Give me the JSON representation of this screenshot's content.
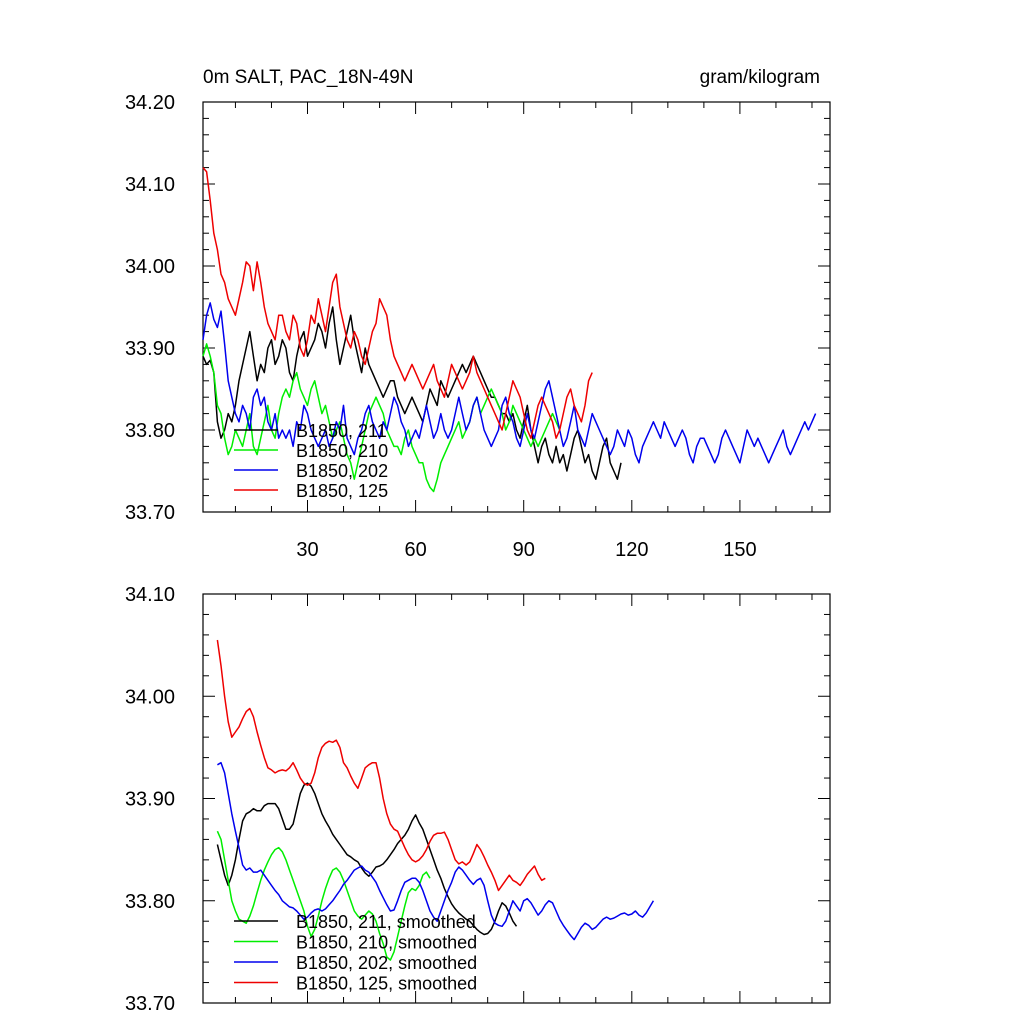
{
  "chart_data": [
    {
      "type": "line",
      "title": "0m SALT, PAC_18N-49N",
      "units": "gram/kilogram",
      "xlabel": "",
      "ylabel": "",
      "xlim": [
        1,
        175
      ],
      "ylim": [
        33.7,
        34.2
      ],
      "xticks": [
        30,
        60,
        90,
        120,
        150
      ],
      "yticks": [
        33.7,
        33.8,
        33.9,
        34.0,
        34.1,
        34.2
      ],
      "ytick_labels": [
        "33.70",
        "33.80",
        "33.90",
        "34.00",
        "34.10",
        "34.20"
      ],
      "legend_position": "bottom-left",
      "grid": false,
      "series": [
        {
          "name": "B1850, 211",
          "color": "#000000",
          "x_start": 1,
          "values": [
            33.89,
            33.88,
            33.885,
            33.87,
            33.81,
            33.79,
            33.8,
            33.82,
            33.81,
            33.83,
            33.86,
            33.88,
            33.9,
            33.92,
            33.89,
            33.86,
            33.88,
            33.87,
            33.9,
            33.91,
            33.88,
            33.89,
            33.91,
            33.9,
            33.87,
            33.86,
            33.89,
            33.91,
            33.92,
            33.89,
            33.9,
            33.91,
            33.93,
            33.92,
            33.9,
            33.93,
            33.95,
            33.91,
            33.88,
            33.9,
            33.92,
            33.94,
            33.91,
            33.89,
            33.87,
            33.9,
            33.88,
            33.87,
            33.86,
            33.85,
            33.84,
            33.85,
            33.86,
            33.86,
            33.84,
            33.83,
            33.82,
            33.83,
            33.84,
            33.83,
            33.82,
            33.81,
            33.83,
            33.85,
            33.84,
            33.83,
            33.86,
            33.85,
            33.84,
            33.85,
            33.86,
            33.87,
            33.88,
            33.87,
            33.88,
            33.89,
            33.88,
            33.87,
            33.86,
            33.85,
            33.84,
            33.84,
            33.83,
            33.82,
            33.82,
            33.81,
            33.82,
            33.8,
            33.79,
            33.81,
            33.83,
            33.8,
            33.78,
            33.76,
            33.78,
            33.79,
            33.77,
            33.76,
            33.78,
            33.76,
            33.77,
            33.75,
            33.77,
            33.79,
            33.8,
            33.78,
            33.76,
            33.77,
            33.75,
            33.74,
            33.76,
            33.78,
            33.79,
            33.76,
            33.75,
            33.74,
            33.76
          ]
        },
        {
          "name": "B1850, 210",
          "color": "#00ee00",
          "x_start": 1,
          "values": [
            33.89,
            33.905,
            33.89,
            33.87,
            33.83,
            33.82,
            33.79,
            33.77,
            33.78,
            33.8,
            33.79,
            33.78,
            33.8,
            33.82,
            33.78,
            33.77,
            33.79,
            33.81,
            33.83,
            33.8,
            33.79,
            33.82,
            33.84,
            33.85,
            33.84,
            33.86,
            33.87,
            33.85,
            33.84,
            33.83,
            33.85,
            33.86,
            33.84,
            33.82,
            33.83,
            33.81,
            33.79,
            33.8,
            33.81,
            33.79,
            33.77,
            33.76,
            33.74,
            33.76,
            33.78,
            33.8,
            33.82,
            33.83,
            33.84,
            33.83,
            33.82,
            33.8,
            33.79,
            33.78,
            33.78,
            33.77,
            33.79,
            33.8,
            33.78,
            33.77,
            33.76,
            33.76,
            33.74,
            33.73,
            33.725,
            33.74,
            33.76,
            33.77,
            33.78,
            33.79,
            33.8,
            33.81,
            33.79,
            33.8,
            33.81,
            33.83,
            33.84,
            33.82,
            33.83,
            33.84,
            33.85,
            33.84,
            33.83,
            33.82,
            33.8,
            33.81,
            33.83,
            33.82,
            33.81,
            33.8,
            33.79,
            33.78,
            33.79,
            33.78,
            33.79,
            33.8,
            33.81,
            33.82,
            33.81,
            33.8
          ]
        },
        {
          "name": "B1850, 202",
          "color": "#0000ee",
          "x_start": 1,
          "values": [
            33.91,
            33.94,
            33.955,
            33.935,
            33.925,
            33.945,
            33.905,
            33.86,
            33.84,
            33.82,
            33.81,
            33.83,
            33.82,
            33.8,
            33.84,
            33.85,
            33.83,
            33.84,
            33.81,
            33.8,
            33.82,
            33.79,
            33.8,
            33.79,
            33.8,
            33.78,
            33.81,
            33.8,
            33.83,
            33.82,
            33.8,
            33.79,
            33.78,
            33.79,
            33.8,
            33.78,
            33.79,
            33.81,
            33.8,
            33.83,
            33.79,
            33.78,
            33.77,
            33.79,
            33.8,
            33.82,
            33.83,
            33.81,
            33.8,
            33.79,
            33.81,
            33.8,
            33.82,
            33.84,
            33.83,
            33.81,
            33.8,
            33.78,
            33.79,
            33.8,
            33.79,
            33.81,
            33.83,
            33.81,
            33.79,
            33.8,
            33.82,
            33.8,
            33.79,
            33.8,
            33.82,
            33.84,
            33.82,
            33.8,
            33.81,
            33.83,
            33.84,
            33.82,
            33.8,
            33.79,
            33.78,
            33.79,
            33.8,
            33.83,
            33.84,
            33.82,
            33.81,
            33.79,
            33.78,
            33.8,
            33.82,
            33.8,
            33.79,
            33.81,
            33.83,
            33.85,
            33.86,
            33.84,
            33.82,
            33.8,
            33.78,
            33.79,
            33.81,
            33.83,
            33.8,
            33.79,
            33.78,
            33.8,
            33.82,
            33.81,
            33.8,
            33.79,
            33.78,
            33.77,
            33.78,
            33.8,
            33.79,
            33.78,
            33.8,
            33.79,
            33.77,
            33.76,
            33.78,
            33.79,
            33.8,
            33.81,
            33.8,
            33.79,
            33.81,
            33.8,
            33.79,
            33.78,
            33.79,
            33.8,
            33.79,
            33.77,
            33.76,
            33.78,
            33.79,
            33.79,
            33.78,
            33.77,
            33.76,
            33.77,
            33.79,
            33.8,
            33.79,
            33.78,
            33.77,
            33.76,
            33.78,
            33.8,
            33.79,
            33.78,
            33.79,
            33.78,
            33.77,
            33.76,
            33.77,
            33.78,
            33.79,
            33.8,
            33.78,
            33.77,
            33.78,
            33.79,
            33.8,
            33.81,
            33.8,
            33.81,
            33.82
          ]
        },
        {
          "name": "B1850, 125",
          "color": "#ee0000",
          "x_start": 1,
          "values": [
            34.12,
            34.115,
            34.08,
            34.04,
            34.02,
            33.99,
            33.98,
            33.96,
            33.95,
            33.94,
            33.96,
            33.98,
            34.005,
            34.0,
            33.97,
            34.005,
            33.98,
            33.95,
            33.93,
            33.92,
            33.91,
            33.94,
            33.94,
            33.92,
            33.91,
            33.94,
            33.93,
            33.9,
            33.89,
            33.91,
            33.94,
            33.93,
            33.96,
            33.94,
            33.92,
            33.95,
            33.98,
            33.99,
            33.95,
            33.93,
            33.91,
            33.9,
            33.92,
            33.91,
            33.89,
            33.88,
            33.9,
            33.92,
            33.93,
            33.96,
            33.95,
            33.94,
            33.91,
            33.89,
            33.88,
            33.87,
            33.86,
            33.87,
            33.88,
            33.87,
            33.86,
            33.85,
            33.86,
            33.87,
            33.88,
            33.86,
            33.85,
            33.84,
            33.86,
            33.88,
            33.87,
            33.86,
            33.85,
            33.86,
            33.87,
            33.89,
            33.87,
            33.86,
            33.85,
            33.84,
            33.83,
            33.82,
            33.81,
            33.8,
            33.82,
            33.84,
            33.86,
            33.85,
            33.84,
            33.82,
            33.8,
            33.79,
            33.81,
            33.83,
            33.84,
            33.83,
            33.82,
            33.81,
            33.79,
            33.8,
            33.82,
            33.84,
            33.85,
            33.83,
            33.82,
            33.81,
            33.83,
            33.86,
            33.87
          ]
        }
      ]
    },
    {
      "type": "line",
      "title": "",
      "xlabel": "",
      "ylabel": "",
      "xlim": [
        1,
        175
      ],
      "ylim": [
        33.7,
        34.1
      ],
      "yticks": [
        33.7,
        33.8,
        33.9,
        34.0,
        34.1
      ],
      "ytick_labels": [
        "33.70",
        "33.80",
        "33.90",
        "34.00",
        "34.10"
      ],
      "legend_position": "bottom-left",
      "grid": false,
      "series": [
        {
          "name": "B1850, 211, smoothed",
          "color": "#000000",
          "x_start": 5,
          "values": [
            33.855,
            33.84,
            33.825,
            33.815,
            33.825,
            33.84,
            33.86,
            33.878,
            33.885,
            33.887,
            33.89,
            33.888,
            33.888,
            33.893,
            33.895,
            33.895,
            33.895,
            33.89,
            33.88,
            33.87,
            33.87,
            33.875,
            33.89,
            33.905,
            33.913,
            33.915,
            33.912,
            33.905,
            33.895,
            33.885,
            33.878,
            33.872,
            33.865,
            33.86,
            33.855,
            33.85,
            33.845,
            33.843,
            33.84,
            33.838,
            33.832,
            33.827,
            33.824,
            33.828,
            33.833,
            33.834,
            33.836,
            33.84,
            33.845,
            33.85,
            33.856,
            33.86,
            33.864,
            33.87,
            33.878,
            33.884,
            33.876,
            33.87,
            33.86,
            33.85,
            33.84,
            33.83,
            33.822,
            33.812,
            33.804,
            33.797,
            33.792,
            33.788,
            33.785,
            33.782,
            33.78,
            33.776,
            33.772,
            33.769,
            33.767,
            33.768,
            33.772,
            33.78,
            33.79,
            33.798,
            33.795,
            33.788,
            33.78,
            33.775
          ]
        },
        {
          "name": "B1850, 210, smoothed",
          "color": "#00ee00",
          "x_start": 5,
          "values": [
            33.868,
            33.86,
            33.84,
            33.82,
            33.8,
            33.79,
            33.782,
            33.78,
            33.778,
            33.785,
            33.795,
            33.808,
            33.82,
            33.83,
            33.838,
            33.845,
            33.85,
            33.852,
            33.848,
            33.84,
            33.83,
            33.82,
            33.81,
            33.8,
            33.79,
            33.775,
            33.765,
            33.772,
            33.785,
            33.8,
            33.812,
            33.822,
            33.83,
            33.832,
            33.828,
            33.82,
            33.81,
            33.8,
            33.79,
            33.785,
            33.782,
            33.786,
            33.79,
            33.787,
            33.78,
            33.768,
            33.758,
            33.745,
            33.742,
            33.75,
            33.765,
            33.78,
            33.795,
            33.808,
            33.812,
            33.81,
            33.815,
            33.825,
            33.828,
            33.822
          ]
        },
        {
          "name": "B1850, 202, smoothed",
          "color": "#0000ee",
          "x_start": 5,
          "values": [
            33.933,
            33.935,
            33.925,
            33.905,
            33.885,
            33.868,
            33.852,
            33.835,
            33.83,
            33.832,
            33.828,
            33.828,
            33.83,
            33.825,
            33.82,
            33.815,
            33.81,
            33.806,
            33.8,
            33.797,
            33.794,
            33.793,
            33.79,
            33.786,
            33.782,
            33.784,
            33.788,
            33.791,
            33.792,
            33.79,
            33.792,
            33.796,
            33.8,
            33.805,
            33.81,
            33.816,
            33.82,
            33.825,
            33.83,
            33.832,
            33.834,
            33.83,
            33.828,
            33.823,
            33.818,
            33.81,
            33.803,
            33.796,
            33.79,
            33.791,
            33.8,
            33.81,
            33.818,
            33.82,
            33.822,
            33.822,
            33.818,
            33.81,
            33.8,
            33.79,
            33.784,
            33.78,
            33.79,
            33.8,
            33.81,
            33.818,
            33.828,
            33.833,
            33.83,
            33.825,
            33.82,
            33.816,
            33.82,
            33.822,
            33.815,
            33.8,
            33.786,
            33.778,
            33.776,
            33.775,
            33.78,
            33.79,
            33.8,
            33.795,
            33.79,
            33.8,
            33.802,
            33.798,
            33.792,
            33.786,
            33.79,
            33.796,
            33.8,
            33.798,
            33.79,
            33.782,
            33.776,
            33.771,
            33.766,
            33.762,
            33.768,
            33.774,
            33.778,
            33.776,
            33.772,
            33.774,
            33.778,
            33.782,
            33.784,
            33.782,
            33.783,
            33.785,
            33.787,
            33.788,
            33.786,
            33.787,
            33.79,
            33.786,
            33.784,
            33.788,
            33.794,
            33.8
          ]
        },
        {
          "name": "B1850, 125, smoothed",
          "color": "#ee0000",
          "x_start": 5,
          "values": [
            34.055,
            34.03,
            34.0,
            33.975,
            33.96,
            33.965,
            33.97,
            33.978,
            33.985,
            33.988,
            33.98,
            33.965,
            33.952,
            33.94,
            33.93,
            33.928,
            33.925,
            33.927,
            33.928,
            33.927,
            33.93,
            33.935,
            33.928,
            33.92,
            33.915,
            33.913,
            33.915,
            33.925,
            33.94,
            33.95,
            33.954,
            33.956,
            33.955,
            33.957,
            33.95,
            33.935,
            33.93,
            33.922,
            33.915,
            33.91,
            33.92,
            33.93,
            33.933,
            33.935,
            33.935,
            33.92,
            33.9,
            33.885,
            33.875,
            33.87,
            33.868,
            33.86,
            33.852,
            33.845,
            33.84,
            33.838,
            33.84,
            33.844,
            33.85,
            33.858,
            33.864,
            33.866,
            33.866,
            33.867,
            33.86,
            33.85,
            33.84,
            33.836,
            33.838,
            33.835,
            33.838,
            33.846,
            33.855,
            33.85,
            33.843,
            33.835,
            33.828,
            33.82,
            33.81,
            33.815,
            33.82,
            33.825,
            33.82,
            33.818,
            33.815,
            33.82,
            33.826,
            33.83,
            33.834,
            33.826,
            33.82,
            33.822
          ]
        }
      ]
    }
  ]
}
